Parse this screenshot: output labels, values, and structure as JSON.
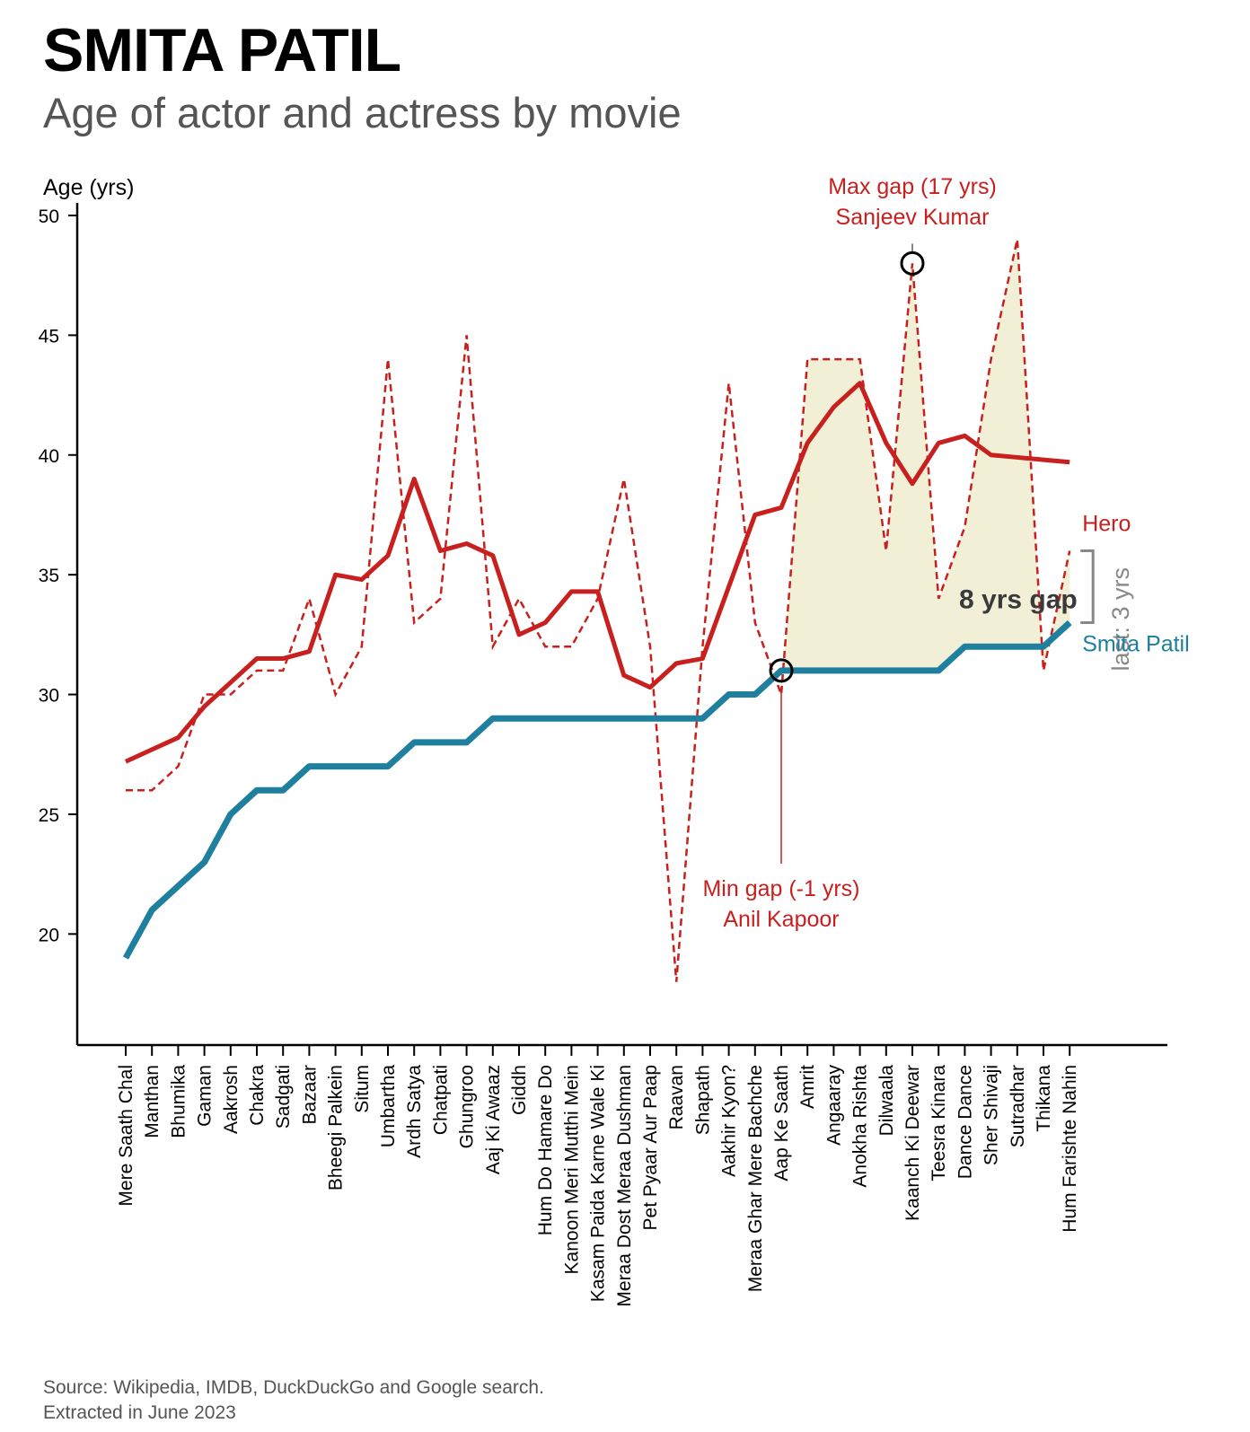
{
  "header": {
    "title": "SMITA PATIL",
    "subtitle": "Age of actor and actress by movie"
  },
  "footer": {
    "source_line1": "Source: Wikipedia, IMDB, DuckDuckGo and Google search.",
    "source_line2": "Extracted in June 2023"
  },
  "colors": {
    "hero": "#c8201e",
    "actress": "#1f7f9e",
    "gap_fill": "#f1f0d6",
    "annotation_gray": "#888888",
    "gap_text": "#3a3a3a"
  },
  "chart_data": {
    "type": "line",
    "ylabel": "Age (yrs)",
    "xlabel": "",
    "ylim": [
      16.5,
      51
    ],
    "yticks": [
      20,
      25,
      30,
      35,
      40,
      45,
      50
    ],
    "categories": [
      "Mere Saath Chal",
      "Manthan",
      "Bhumika",
      "Gaman",
      "Aakrosh",
      "Chakra",
      "Sadgati",
      "Bazaar",
      "Bheegi Palkein",
      "Situm",
      "Umbartha",
      "Ardh Satya",
      "Chatpati",
      "Ghungroo",
      "Aaj Ki Awaaz",
      "Giddh",
      "Hum Do Hamare Do",
      "Kanoon Meri Mutthi Mein",
      "Kasam Paida Karne Wale Ki",
      "Meraa Dost Meraa Dushman",
      "Pet Pyaar Aur Paap",
      "Raavan",
      "Shapath",
      "Aakhir Kyon?",
      "Meraa Ghar Mere Bachche",
      "Aap Ke Saath",
      "Amrit",
      "Angaaray",
      "Anokha Rishta",
      "Dilwaala",
      "Kaanch Ki Deewar",
      "Teesra Kinara",
      "Dance Dance",
      "Sher Shivaji",
      "Sutradhar",
      "Thikana",
      "Hum Farishte Nahin"
    ],
    "series": [
      {
        "name": "Hero",
        "style": "dashed",
        "values": [
          26,
          26,
          27,
          30,
          30,
          31,
          31,
          34,
          30,
          32,
          44,
          33,
          34,
          45,
          32,
          34,
          32,
          32,
          34,
          39,
          32,
          18,
          32,
          43,
          33,
          30,
          44,
          44,
          44,
          36,
          48,
          34,
          37,
          44,
          49,
          31,
          36
        ]
      },
      {
        "name": "",
        "style": "solid-smoothed",
        "values": [
          27.2,
          27.7,
          28.2,
          29.5,
          30.5,
          31.5,
          31.5,
          31.8,
          35,
          34.8,
          35.8,
          39,
          36,
          36.3,
          35.8,
          32.5,
          33,
          34.3,
          34.3,
          30.8,
          30.3,
          31.3,
          31.5,
          34.5,
          37.5,
          37.8,
          40.5,
          42,
          43,
          40.5,
          38.8,
          40.5,
          40.8,
          40,
          39.9,
          39.8,
          39.7
        ]
      },
      {
        "name": "Smita Patil",
        "style": "solid",
        "values": [
          19,
          21,
          22,
          23,
          25,
          26,
          26,
          27,
          27,
          27,
          27,
          28,
          28,
          28,
          29,
          29,
          29,
          29,
          29,
          29,
          29,
          29,
          29,
          30,
          30,
          31,
          31,
          31,
          31,
          31,
          31,
          31,
          32,
          32,
          32,
          32,
          33
        ]
      }
    ],
    "annotations": {
      "max_gap": {
        "line1": "Max gap (17 yrs)",
        "line2": "Sanjeev Kumar",
        "index": 30,
        "value": 48
      },
      "min_gap": {
        "line1": "Min gap (-1 yrs)",
        "line2": "Anil Kapoor",
        "index": 25,
        "value": 31
      },
      "gap_label": "8 yrs gap",
      "last_label": "last: 3 yrs"
    },
    "legend": {
      "hero": "Hero",
      "actress": "Smita Patil"
    },
    "grid": false
  }
}
